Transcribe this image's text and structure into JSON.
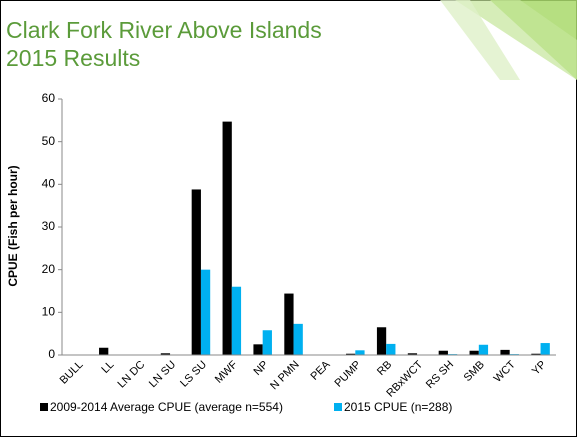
{
  "chart_data": {
    "type": "bar",
    "title": [
      "Clark Fork River Above Islands",
      "2015 Results"
    ],
    "y_label": "CPUE (Fish per hour)",
    "categories": [
      "BULL",
      "LL",
      "LN DC",
      "LN SU",
      "LS SU",
      "MWF",
      "NP",
      "N PMN",
      "PEA",
      "PUMP",
      "RB",
      "RBxWCT",
      "RS SH",
      "SMB",
      "WCT",
      "YP"
    ],
    "series": [
      {
        "name": "2009-2014 Average CPUE (average n=554)",
        "color": "#000000",
        "values": [
          0.1,
          1.7,
          0.1,
          0.4,
          38.8,
          54.7,
          2.5,
          14.4,
          0,
          0.3,
          6.5,
          0.4,
          1.0,
          1.0,
          1.2,
          0.3
        ]
      },
      {
        "name": "2015 CPUE (n=288)",
        "color": "#00b0f0",
        "values": [
          0,
          0,
          0,
          0,
          20,
          16,
          5.8,
          7.3,
          0,
          1.1,
          2.6,
          0,
          0.2,
          2.4,
          0.2,
          2.8
        ]
      }
    ],
    "ylim": [
      0,
      60
    ],
    "yticks": [
      0,
      10,
      20,
      30,
      40,
      50,
      60
    ],
    "legend": "bottom"
  }
}
